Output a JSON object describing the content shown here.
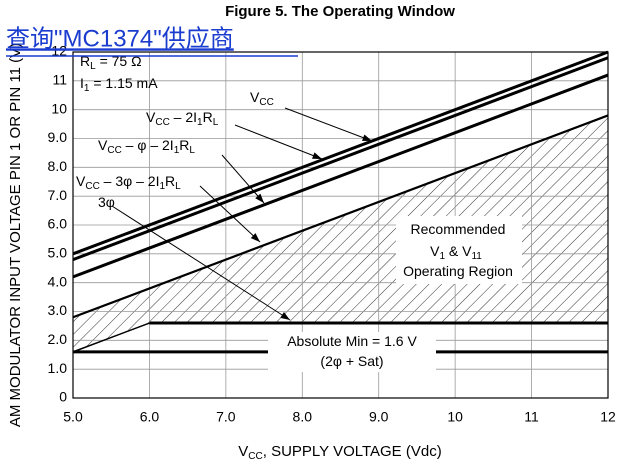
{
  "chart_data": {
    "type": "line",
    "title": "Figure 5. The Operating Window",
    "watermark": "查询\"MC1374\"供应商",
    "x_label": [
      "V",
      "CC",
      ", SUPPLY VOLTAGE (Vdc)"
    ],
    "y_label": "AM MODULATOR INPUT VOLTAGE PIN 1 OR PIN 11 (V)",
    "xlim": [
      5,
      12
    ],
    "ylim": [
      0,
      12
    ],
    "xticks": [
      {
        "value": 5,
        "label": "5.0"
      },
      {
        "value": 6,
        "label": "6.0"
      },
      {
        "value": 7,
        "label": "7.0"
      },
      {
        "value": 8,
        "label": "8.0"
      },
      {
        "value": 9,
        "label": "9.0"
      },
      {
        "value": 10,
        "label": "10"
      },
      11,
      12
    ],
    "yticks": [
      0,
      {
        "value": 1,
        "label": "1.0"
      },
      {
        "value": 2,
        "label": "2.0"
      },
      {
        "value": 3,
        "label": "3.0"
      },
      {
        "value": 4,
        "label": "4.0"
      },
      {
        "value": 5,
        "label": "5.0"
      },
      {
        "value": 6,
        "label": "6.0"
      },
      {
        "value": 7,
        "label": "7.0"
      },
      {
        "value": 8,
        "label": "8.0"
      },
      {
        "value": 9,
        "label": "9.0"
      },
      10,
      11,
      12
    ],
    "grid": true,
    "series": [
      {
        "name": [
          "V",
          "CC"
        ],
        "color": "#000000",
        "width": 3,
        "x": [
          5,
          12
        ],
        "values": [
          5.0,
          12.0
        ]
      },
      {
        "name": [
          "V",
          "CC",
          " – 2I",
          "1",
          "R",
          "L"
        ],
        "color": "#000000",
        "width": 3,
        "x": [
          5,
          12
        ],
        "values": [
          4.8,
          11.8
        ]
      },
      {
        "name": [
          "V",
          "CC",
          " – φ – 2I",
          "1",
          "R",
          "L"
        ],
        "color": "#000000",
        "width": 3,
        "x": [
          5,
          12
        ],
        "values": [
          4.2,
          11.2
        ]
      },
      {
        "name": [
          "V",
          "CC",
          " – 3φ – 2I",
          "1",
          "R",
          "L"
        ],
        "color": "#000000",
        "width": 2.2,
        "x": [
          5,
          12
        ],
        "values": [
          2.8,
          9.8
        ]
      },
      {
        "name": [
          "3φ"
        ],
        "color": "#000000",
        "width": 1.5,
        "x": [
          5,
          6
        ],
        "values": [
          1.6,
          2.6
        ]
      },
      {
        "color": "#000000",
        "width": 3,
        "x": [
          6,
          12
        ],
        "values": [
          2.6,
          2.6
        ]
      },
      {
        "color": "#000000",
        "width": 3,
        "x": [
          5,
          12
        ],
        "values": [
          1.6,
          1.6
        ]
      }
    ],
    "annotations": [
      [
        "R",
        "L",
        " = 75 Ω"
      ],
      [
        "I",
        "1",
        " = 1.15 mA"
      ],
      [
        "Recommended"
      ],
      [
        "V",
        "1",
        " & V",
        "11"
      ],
      [
        "Operating Region"
      ],
      [
        "Absolute Min = 1.6 V"
      ],
      [
        "(2φ + Sat)"
      ]
    ]
  }
}
